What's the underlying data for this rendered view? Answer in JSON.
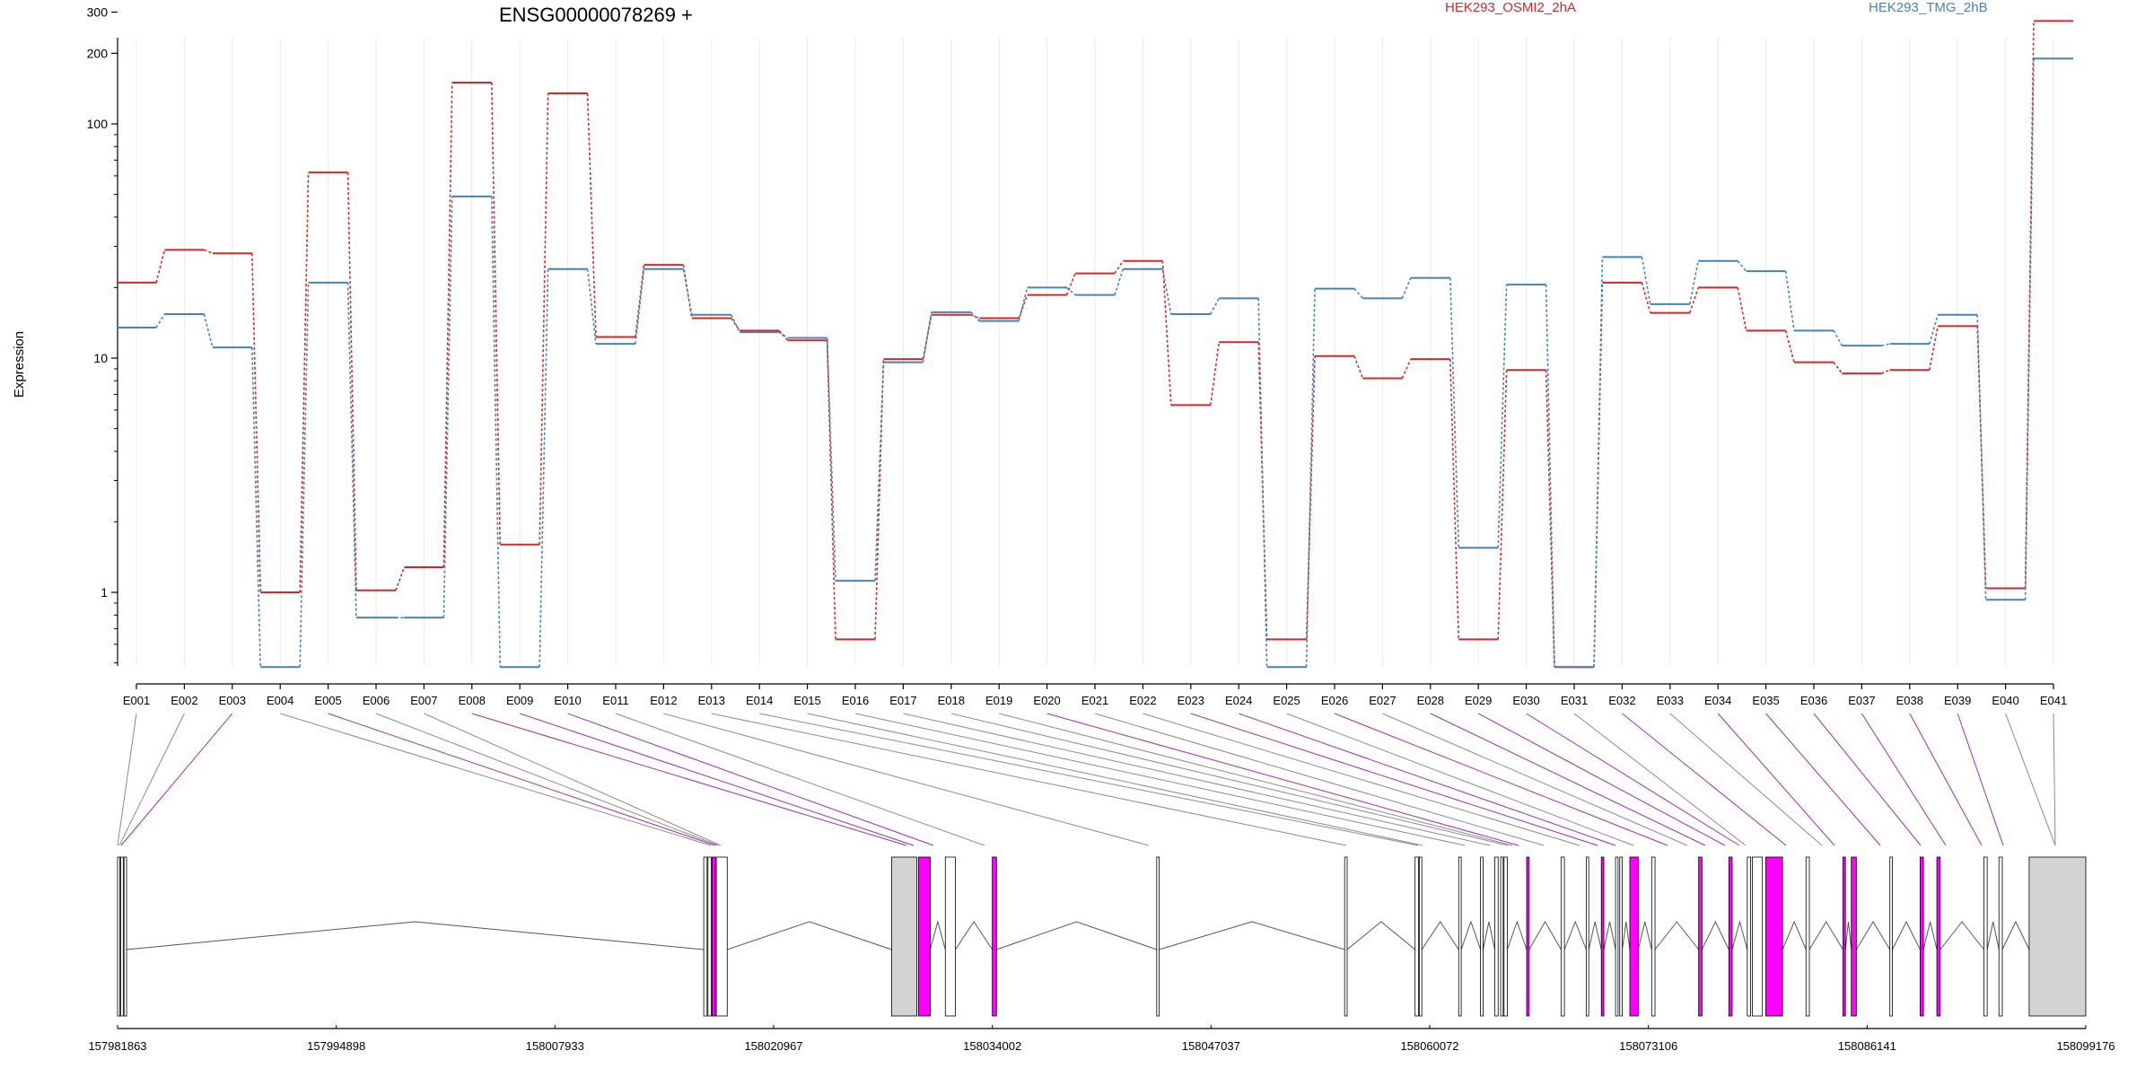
{
  "chart_data": {
    "type": "line",
    "title": "ENSG00000078269 +",
    "ylabel": "Expression",
    "xlabel": "",
    "yscale": "log",
    "ylim": [
      0.5,
      400
    ],
    "yticks": [
      "1",
      "10",
      "100",
      "200",
      "300"
    ],
    "yticks_values": [
      1,
      10,
      100,
      200,
      300
    ],
    "categories": [
      "E001",
      "E002",
      "E003",
      "E004",
      "E005",
      "E006",
      "E007",
      "E008",
      "E009",
      "E010",
      "E011",
      "E012",
      "E013",
      "E014",
      "E015",
      "E016",
      "E017",
      "E018",
      "E019",
      "E020",
      "E021",
      "E022",
      "E023",
      "E024",
      "E025",
      "E026",
      "E027",
      "E028",
      "E029",
      "E030",
      "E031",
      "E032",
      "E033",
      "E034",
      "E035",
      "E036",
      "E037",
      "E038",
      "E039",
      "E040",
      "E041"
    ],
    "series": [
      {
        "name": "HEK293_OSMI2_2hA",
        "color": "#d62728",
        "values": [
          21,
          29,
          28,
          1.0,
          62,
          1.02,
          1.28,
          150,
          1.6,
          135,
          12.3,
          25,
          14.8,
          13.1,
          11.9,
          0.63,
          9.9,
          15.3,
          14.8,
          18.6,
          23,
          26,
          6.3,
          11.7,
          0.63,
          10.2,
          8.2,
          9.9,
          0.63,
          8.9,
          0.48,
          21,
          15.6,
          20,
          13.1,
          9.6,
          8.6,
          8.9,
          13.7,
          1.04,
          275
        ]
      },
      {
        "name": "HEK293_TMG_2hB",
        "color": "#4682b4",
        "values": [
          13.5,
          15.4,
          11.1,
          0.48,
          21,
          0.78,
          0.78,
          49,
          0.48,
          24,
          11.5,
          24,
          15.3,
          12.9,
          12.2,
          1.12,
          9.6,
          15.7,
          14.4,
          20,
          18.6,
          24,
          15.4,
          18,
          0.48,
          19.8,
          18,
          22,
          1.55,
          20.6,
          0.48,
          27,
          17,
          26,
          23.5,
          13.1,
          11.3,
          11.5,
          15.3,
          0.93,
          190
        ]
      }
    ],
    "gene_model": {
      "coordinate_labels": [
        "157981863",
        "157994898",
        "158007933",
        "158020967",
        "158034002",
        "158047037",
        "158060072",
        "158073106",
        "158086141",
        "158099176"
      ],
      "exon_colors": [
        "#ffffff",
        "#ffffff",
        "#ff00ff",
        "#ffffff",
        "#ff00ff",
        "#ffffff",
        "#ffffff",
        "#ff00ff",
        "#ff00ff",
        "#ff00ff",
        "#ffffff",
        "#ffffff",
        "#ffffff",
        "#ffffff",
        "#ffffff",
        "#ffffff",
        "#ffffff",
        "#ffffff",
        "#ffffff",
        "#ff00ff",
        "#ffffff",
        "#ffffff",
        "#ff00ff",
        "#ff00ff",
        "#ffffff",
        "#ff00ff",
        "#ffffff",
        "#ff00ff",
        "#ff00ff",
        "#ff00ff",
        "#ffffff",
        "#ff00ff",
        "#ffffff",
        "#ff00ff",
        "#ff00ff",
        "#ff00ff",
        "#ff00ff",
        "#ff00ff",
        "#ff00ff",
        "#ffffff",
        "#ffffff"
      ]
    }
  }
}
